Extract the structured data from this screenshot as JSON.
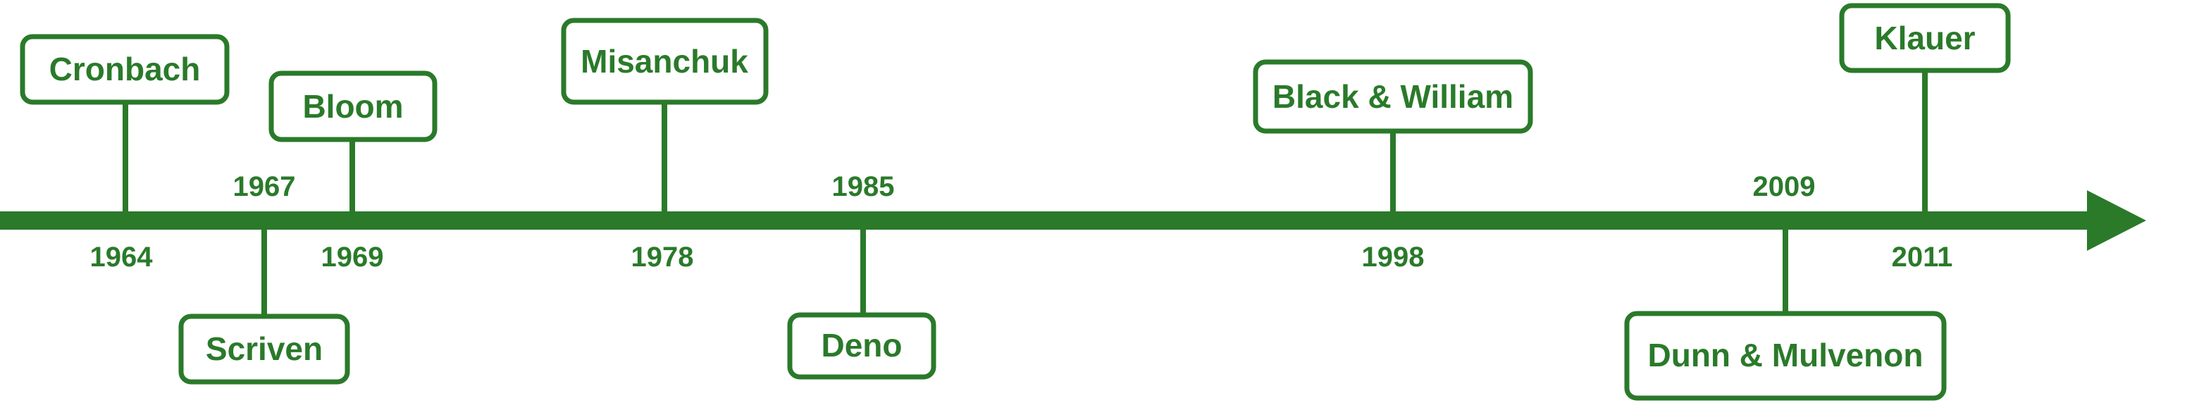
{
  "theme": {
    "color": "#2a7a2a",
    "background": "#ffffff"
  },
  "events": [
    {
      "year": "1964",
      "name": "Cronbach",
      "side": "above"
    },
    {
      "year": "1967",
      "name": "Scriven",
      "side": "below"
    },
    {
      "year": "1969",
      "name": "Bloom",
      "side": "above"
    },
    {
      "year": "1978",
      "name": "Misanchuk",
      "side": "above"
    },
    {
      "year": "1985",
      "name": "Deno",
      "side": "below"
    },
    {
      "year": "1998",
      "name": "Black & William",
      "side": "above"
    },
    {
      "year": "2009",
      "name": "Dunn & Mulvenon",
      "side": "below"
    },
    {
      "year": "2011",
      "name": "Klauer",
      "side": "above"
    }
  ]
}
